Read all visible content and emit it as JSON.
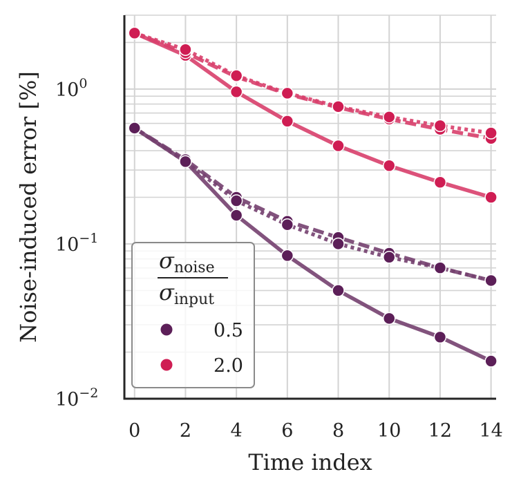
{
  "chart_data": {
    "type": "line",
    "yscale": "log",
    "xlabel": "Time index",
    "ylabel": "Noise-induced error [%]",
    "xlim": [
      -0.4,
      14.2
    ],
    "ylim": [
      0.01,
      3.0
    ],
    "x_ticks": [
      0,
      2,
      4,
      6,
      8,
      10,
      12,
      14
    ],
    "y_ticks": [
      {
        "value": 1.0,
        "base": "10",
        "exp": "0"
      },
      {
        "value": 0.1,
        "base": "10",
        "exp": "−1"
      },
      {
        "value": 0.01,
        "base": "10",
        "exp": "−2"
      }
    ],
    "legend": {
      "title_numerator": "σ",
      "title_numerator_sub": "noise",
      "title_denominator": "σ",
      "title_denominator_sub": "input",
      "entries": [
        {
          "label": "0.5",
          "color": "#5c1f58"
        },
        {
          "label": "2.0",
          "color": "#cf1d53"
        }
      ]
    },
    "series": [
      {
        "name": "0.5 solid",
        "group": "0.5",
        "style": "solid",
        "color": "#74406f",
        "x": [
          0,
          2,
          4,
          6,
          8,
          10,
          12,
          14
        ],
        "values": [
          0.56,
          0.34,
          0.153,
          0.084,
          0.05,
          0.033,
          0.025,
          0.0175
        ]
      },
      {
        "name": "0.5 dashed",
        "group": "0.5",
        "style": "dashed",
        "color": "#74406f",
        "x": [
          0,
          2,
          4,
          6,
          8,
          10,
          12,
          14
        ],
        "values": [
          0.56,
          0.35,
          0.2,
          0.14,
          0.11,
          0.087,
          0.07,
          0.058
        ]
      },
      {
        "name": "0.5 dotted",
        "group": "0.5",
        "style": "dotted",
        "color": "#74406f",
        "x": [
          0,
          2,
          4,
          6,
          8,
          10,
          12,
          14
        ],
        "values": [
          0.56,
          0.34,
          0.19,
          0.133,
          0.1,
          0.082,
          0.07,
          0.058
        ]
      },
      {
        "name": "2.0 solid",
        "group": "2.0",
        "style": "solid",
        "color": "#d83f6c",
        "x": [
          0,
          2,
          4,
          6,
          8,
          10,
          12,
          14
        ],
        "values": [
          2.3,
          1.65,
          0.96,
          0.62,
          0.43,
          0.32,
          0.25,
          0.2
        ]
      },
      {
        "name": "2.0 dashed",
        "group": "2.0",
        "style": "dashed",
        "color": "#d83f6c",
        "x": [
          0,
          2,
          4,
          6,
          8,
          10,
          12,
          14
        ],
        "values": [
          2.3,
          1.72,
          1.2,
          0.93,
          0.76,
          0.64,
          0.55,
          0.48
        ]
      },
      {
        "name": "2.0 dotted",
        "group": "2.0",
        "style": "dotted",
        "color": "#d83f6c",
        "x": [
          0,
          2,
          4,
          6,
          8,
          10,
          12,
          14
        ],
        "values": [
          2.3,
          1.8,
          1.22,
          0.94,
          0.77,
          0.66,
          0.58,
          0.52
        ]
      }
    ]
  }
}
